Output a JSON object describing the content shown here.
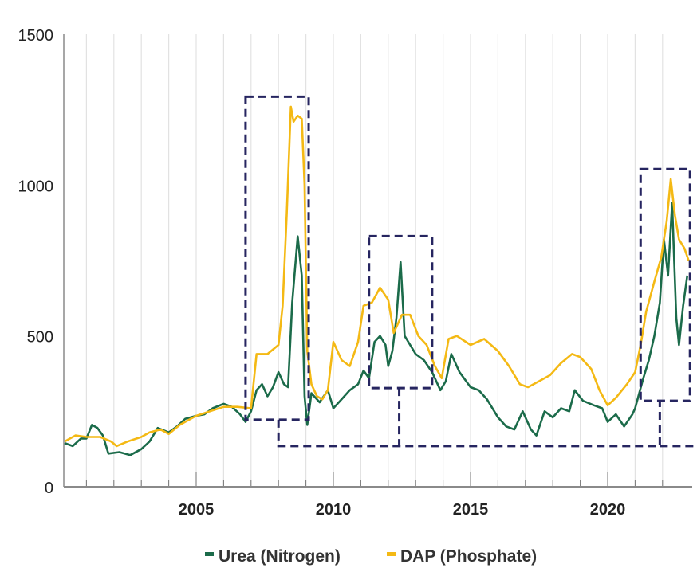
{
  "chart_data": {
    "type": "line",
    "title": "",
    "xlabel": "",
    "ylabel": "",
    "xlim": [
      2000.2,
      2023.0
    ],
    "ylim": [
      0,
      1500
    ],
    "yticks": [
      0,
      500,
      1000,
      1500
    ],
    "ytick_labels": [
      "0",
      "500",
      "1000",
      "1500"
    ],
    "xticks": [
      2005,
      2010,
      2015,
      2020
    ],
    "xtick_labels": [
      "2005",
      "2010",
      "2015",
      "2020"
    ],
    "grid": "vertical yearly gridlines",
    "legend_position": "bottom-center",
    "colors": {
      "urea": "#1b6b4a",
      "dap": "#f4b914",
      "annotation": "#262560",
      "grid": "#e2e2e2",
      "axis": "#8a8a8a"
    },
    "series": [
      {
        "name": "Urea (Nitrogen)",
        "color_key": "urea",
        "points": [
          [
            2000.2,
            145
          ],
          [
            2000.5,
            135
          ],
          [
            2000.8,
            160
          ],
          [
            2001.0,
            160
          ],
          [
            2001.2,
            205
          ],
          [
            2001.4,
            195
          ],
          [
            2001.6,
            170
          ],
          [
            2001.8,
            110
          ],
          [
            2002.2,
            115
          ],
          [
            2002.6,
            105
          ],
          [
            2003.0,
            125
          ],
          [
            2003.3,
            150
          ],
          [
            2003.6,
            195
          ],
          [
            2004.0,
            180
          ],
          [
            2004.3,
            200
          ],
          [
            2004.6,
            225
          ],
          [
            2005.0,
            235
          ],
          [
            2005.3,
            240
          ],
          [
            2005.6,
            260
          ],
          [
            2006.0,
            275
          ],
          [
            2006.3,
            265
          ],
          [
            2006.6,
            240
          ],
          [
            2006.8,
            215
          ],
          [
            2007.0,
            250
          ],
          [
            2007.2,
            320
          ],
          [
            2007.4,
            340
          ],
          [
            2007.6,
            300
          ],
          [
            2007.8,
            330
          ],
          [
            2008.0,
            380
          ],
          [
            2008.2,
            340
          ],
          [
            2008.35,
            330
          ],
          [
            2008.5,
            610
          ],
          [
            2008.7,
            830
          ],
          [
            2008.85,
            700
          ],
          [
            2008.95,
            300
          ],
          [
            2009.05,
            205
          ],
          [
            2009.2,
            310
          ],
          [
            2009.5,
            280
          ],
          [
            2009.8,
            320
          ],
          [
            2010.0,
            260
          ],
          [
            2010.3,
            290
          ],
          [
            2010.6,
            320
          ],
          [
            2010.9,
            340
          ],
          [
            2011.1,
            385
          ],
          [
            2011.3,
            360
          ],
          [
            2011.5,
            480
          ],
          [
            2011.7,
            500
          ],
          [
            2011.9,
            470
          ],
          [
            2012.0,
            400
          ],
          [
            2012.15,
            450
          ],
          [
            2012.3,
            560
          ],
          [
            2012.45,
            745
          ],
          [
            2012.6,
            500
          ],
          [
            2012.8,
            470
          ],
          [
            2013.0,
            440
          ],
          [
            2013.3,
            420
          ],
          [
            2013.6,
            380
          ],
          [
            2013.9,
            320
          ],
          [
            2014.1,
            350
          ],
          [
            2014.3,
            440
          ],
          [
            2014.6,
            380
          ],
          [
            2015.0,
            330
          ],
          [
            2015.3,
            320
          ],
          [
            2015.6,
            290
          ],
          [
            2016.0,
            230
          ],
          [
            2016.3,
            200
          ],
          [
            2016.6,
            190
          ],
          [
            2016.9,
            250
          ],
          [
            2017.2,
            190
          ],
          [
            2017.4,
            170
          ],
          [
            2017.7,
            250
          ],
          [
            2018.0,
            230
          ],
          [
            2018.3,
            260
          ],
          [
            2018.6,
            250
          ],
          [
            2018.8,
            320
          ],
          [
            2019.1,
            285
          ],
          [
            2019.5,
            270
          ],
          [
            2019.8,
            260
          ],
          [
            2020.0,
            215
          ],
          [
            2020.3,
            240
          ],
          [
            2020.6,
            200
          ],
          [
            2020.9,
            240
          ],
          [
            2021.0,
            260
          ],
          [
            2021.3,
            360
          ],
          [
            2021.5,
            420
          ],
          [
            2021.7,
            500
          ],
          [
            2021.9,
            610
          ],
          [
            2022.05,
            820
          ],
          [
            2022.2,
            700
          ],
          [
            2022.35,
            940
          ],
          [
            2022.5,
            560
          ],
          [
            2022.6,
            470
          ],
          [
            2022.75,
            600
          ],
          [
            2022.9,
            700
          ]
        ]
      },
      {
        "name": "DAP (Phosphate)",
        "color_key": "dap",
        "points": [
          [
            2000.2,
            150
          ],
          [
            2000.6,
            170
          ],
          [
            2001.0,
            165
          ],
          [
            2001.5,
            165
          ],
          [
            2001.9,
            150
          ],
          [
            2002.1,
            135
          ],
          [
            2002.5,
            150
          ],
          [
            2003.0,
            165
          ],
          [
            2003.3,
            180
          ],
          [
            2003.7,
            190
          ],
          [
            2004.0,
            175
          ],
          [
            2004.4,
            205
          ],
          [
            2004.8,
            225
          ],
          [
            2005.0,
            235
          ],
          [
            2005.5,
            250
          ],
          [
            2006.0,
            265
          ],
          [
            2006.5,
            265
          ],
          [
            2007.0,
            260
          ],
          [
            2007.2,
            440
          ],
          [
            2007.6,
            440
          ],
          [
            2008.0,
            470
          ],
          [
            2008.15,
            600
          ],
          [
            2008.3,
            900
          ],
          [
            2008.45,
            1260
          ],
          [
            2008.55,
            1210
          ],
          [
            2008.7,
            1230
          ],
          [
            2008.85,
            1220
          ],
          [
            2008.95,
            1000
          ],
          [
            2009.05,
            450
          ],
          [
            2009.2,
            340
          ],
          [
            2009.4,
            300
          ],
          [
            2009.6,
            290
          ],
          [
            2009.8,
            320
          ],
          [
            2010.0,
            480
          ],
          [
            2010.3,
            420
          ],
          [
            2010.6,
            400
          ],
          [
            2010.9,
            480
          ],
          [
            2011.1,
            600
          ],
          [
            2011.4,
            610
          ],
          [
            2011.7,
            660
          ],
          [
            2012.0,
            620
          ],
          [
            2012.2,
            510
          ],
          [
            2012.5,
            570
          ],
          [
            2012.8,
            570
          ],
          [
            2013.1,
            500
          ],
          [
            2013.4,
            470
          ],
          [
            2013.7,
            400
          ],
          [
            2013.95,
            360
          ],
          [
            2014.2,
            490
          ],
          [
            2014.5,
            500
          ],
          [
            2015.0,
            470
          ],
          [
            2015.5,
            490
          ],
          [
            2016.0,
            450
          ],
          [
            2016.4,
            400
          ],
          [
            2016.8,
            340
          ],
          [
            2017.1,
            330
          ],
          [
            2017.5,
            350
          ],
          [
            2017.9,
            370
          ],
          [
            2018.3,
            410
          ],
          [
            2018.7,
            440
          ],
          [
            2019.0,
            430
          ],
          [
            2019.4,
            390
          ],
          [
            2019.7,
            320
          ],
          [
            2020.0,
            270
          ],
          [
            2020.3,
            295
          ],
          [
            2020.7,
            340
          ],
          [
            2021.0,
            380
          ],
          [
            2021.2,
            470
          ],
          [
            2021.4,
            580
          ],
          [
            2021.7,
            680
          ],
          [
            2021.95,
            760
          ],
          [
            2022.15,
            880
          ],
          [
            2022.3,
            1020
          ],
          [
            2022.45,
            900
          ],
          [
            2022.6,
            820
          ],
          [
            2022.8,
            790
          ],
          [
            2022.95,
            750
          ]
        ]
      }
    ],
    "annotations": [
      {
        "type": "dashed-box",
        "x": [
          2006.8,
          2009.1
        ],
        "y": [
          222,
          1293
        ]
      },
      {
        "type": "dashed-box",
        "x": [
          2011.3,
          2013.6
        ],
        "y": [
          327,
          831
        ]
      },
      {
        "type": "dashed-box",
        "x": [
          2021.2,
          2023.0
        ],
        "y": [
          285,
          1053
        ]
      },
      {
        "type": "dashed-path",
        "points": [
          [
            2008.0,
            222
          ],
          [
            2008.0,
            135
          ],
          [
            2021.9,
            135
          ],
          [
            2021.9,
            285
          ]
        ]
      },
      {
        "type": "dashed-path",
        "points": [
          [
            2012.4,
            327
          ],
          [
            2012.4,
            135
          ]
        ]
      },
      {
        "type": "dashed-path",
        "points": [
          [
            2021.9,
            135
          ],
          [
            2023.2,
            135
          ]
        ]
      }
    ]
  }
}
